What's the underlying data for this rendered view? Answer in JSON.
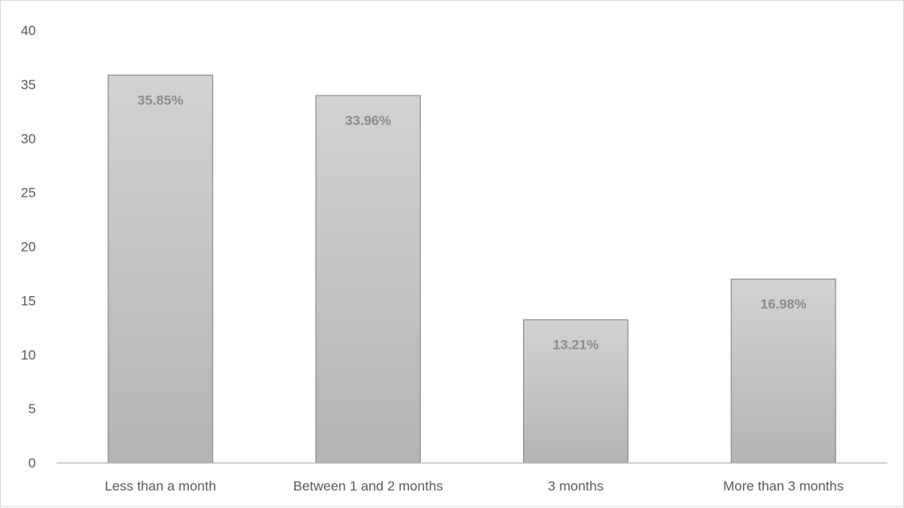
{
  "chart_data": {
    "type": "bar",
    "title": "",
    "xlabel": "",
    "ylabel": "",
    "categories": [
      "Less than a month",
      "Between 1 and 2 months",
      "3 months",
      "More than 3 months"
    ],
    "values": [
      35.85,
      33.96,
      13.21,
      16.98
    ],
    "data_labels": [
      "35.85%",
      "33.96%",
      "13.21%",
      "16.98%"
    ],
    "ylim": [
      0,
      40
    ],
    "yticks": [
      0,
      5,
      10,
      15,
      20,
      25,
      30,
      35,
      40
    ],
    "ytick_labels": [
      "0",
      "5",
      "10",
      "15",
      "20",
      "25",
      "30",
      "35",
      "40"
    ],
    "grid": false,
    "legend": "none",
    "colors": {
      "bar_fill_top": "#d2d2d2",
      "bar_fill_bottom": "#b4b4b4",
      "bar_stroke": "#8c8c8c",
      "axis": "#bfbfbf",
      "text": "#595959",
      "data_label": "#8c8c8c"
    }
  }
}
